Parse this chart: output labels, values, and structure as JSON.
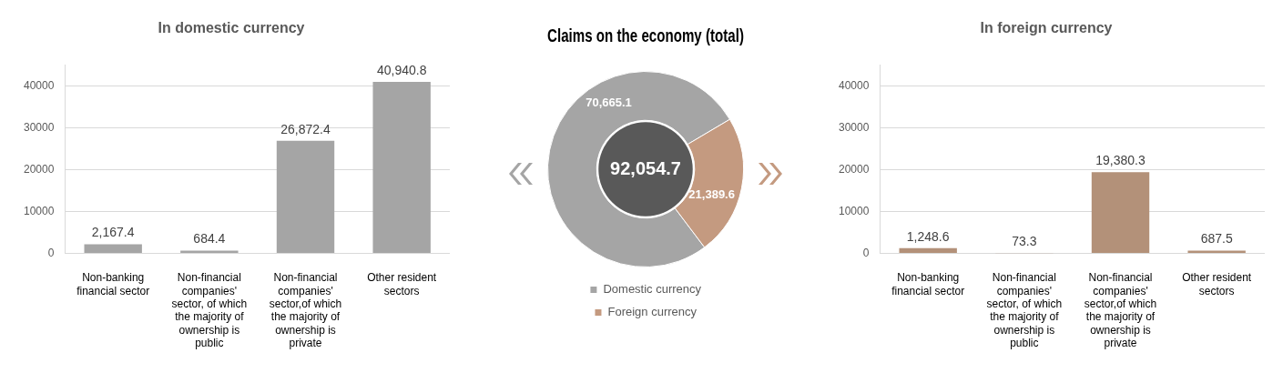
{
  "chart_data": [
    {
      "type": "bar",
      "title": "In domestic currency",
      "categories": [
        "Non-banking financial sector",
        "Non-financial companies' sector, of which the majority of ownership is public",
        "Non-financial companies' sector,of which the majority of ownership is private",
        "Other resident sectors"
      ],
      "values": [
        2167.4,
        684.4,
        26872.4,
        40940.8
      ],
      "value_labels": [
        "2,167.4",
        "684.4",
        "26,872.4",
        "40,940.8"
      ],
      "color": "#a5a5a5",
      "ylim": [
        0,
        45000
      ],
      "yticks": [
        0,
        10000,
        20000,
        30000,
        40000
      ],
      "grid": "y"
    },
    {
      "type": "donut",
      "title": "Claims on the economy (total)",
      "categories": [
        "Domestic currency",
        "Foreign currency"
      ],
      "values": [
        70665.1,
        21389.6
      ],
      "value_labels": [
        "70,665.1",
        "21,389.6"
      ],
      "colors": [
        "#a5a5a5",
        "#c49a80"
      ],
      "legend": "bottom",
      "annotations": [
        "92,054.7"
      ]
    },
    {
      "type": "bar",
      "title": "In foreign currency",
      "categories": [
        "Non-banking financial sector",
        "Non-financial companies' sector, of which the majority of ownership is public",
        "Non-financial companies' sector,of which the majority of ownership is private",
        "Other resident sectors"
      ],
      "values": [
        1248.6,
        73.3,
        19380.3,
        687.5
      ],
      "value_labels": [
        "1,248.6",
        "73.3",
        "19,380.3",
        "687.5"
      ],
      "color": "#b39179",
      "ylim": [
        0,
        45000
      ],
      "yticks": [
        0,
        10000,
        20000,
        30000,
        40000
      ],
      "grid": "y"
    }
  ]
}
